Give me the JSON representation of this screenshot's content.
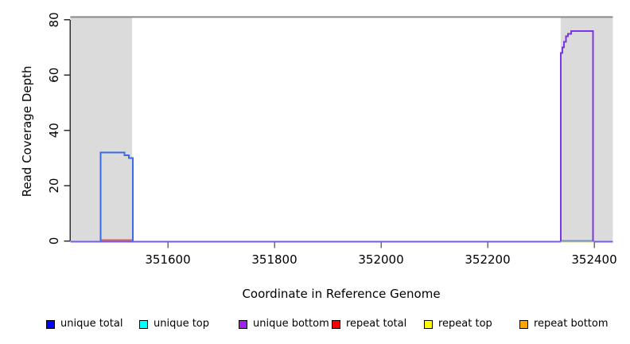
{
  "chart_data": {
    "type": "line",
    "title": "",
    "xlabel": "Coordinate in Reference Genome",
    "ylabel": "Read Coverage Depth",
    "xlim": [
      351417,
      352435
    ],
    "ylim": [
      0,
      81.5
    ],
    "x_ticks": [
      351600,
      351800,
      352000,
      352200,
      352400
    ],
    "y_ticks": [
      0,
      20,
      40,
      60,
      80
    ],
    "grid": false,
    "band_color": "#dbdbdb",
    "top_line_y": 81,
    "top_line_color": "#8a8a8a",
    "axis_color": "#2f2f2f",
    "x_tick_color": "#6e6e6e",
    "shaded_regions": [
      {
        "x0": 351417,
        "x1": 351533
      },
      {
        "x0": 352337,
        "x1": 352435
      }
    ],
    "series": [
      {
        "name": "zero-baseline",
        "color": "#6f5fe8",
        "width": 2,
        "dy": 1,
        "points": [
          [
            351417,
            0
          ],
          [
            352435,
            0
          ]
        ]
      },
      {
        "name": "repeat total zero",
        "color": "#de5f5f",
        "width": 1.6,
        "dy": -1,
        "points": [
          [
            351474,
            0
          ],
          [
            351535,
            0
          ]
        ]
      },
      {
        "name": "repeat top zero",
        "color": "#ededc2",
        "width": 1.6,
        "dy": 1.8,
        "points": [
          [
            352337,
            0
          ],
          [
            352399,
            0
          ]
        ]
      },
      {
        "name": "unique top zero",
        "color": "#8fc98f",
        "width": 1.6,
        "dy": -0.8,
        "points": [
          [
            352337,
            0
          ],
          [
            352399,
            0
          ]
        ]
      },
      {
        "name": "unique total peak",
        "color": "#3a6be6",
        "width": 2,
        "dy": 0,
        "points": [
          [
            351474,
            0
          ],
          [
            351474,
            32
          ],
          [
            351519,
            32
          ],
          [
            351519,
            31
          ],
          [
            351527,
            31
          ],
          [
            351527,
            30
          ],
          [
            351534,
            30
          ],
          [
            351534,
            0
          ]
        ]
      },
      {
        "name": "unique bottom peak",
        "color": "#7a36e5",
        "width": 2,
        "dy": 0,
        "points": [
          [
            352337,
            0
          ],
          [
            352337,
            68
          ],
          [
            352340,
            68
          ],
          [
            352340,
            70
          ],
          [
            352343,
            70
          ],
          [
            352343,
            72
          ],
          [
            352347,
            72
          ],
          [
            352347,
            74
          ],
          [
            352351,
            74
          ],
          [
            352351,
            75
          ],
          [
            352357,
            75
          ],
          [
            352357,
            76
          ],
          [
            352398,
            76
          ],
          [
            352398,
            0
          ]
        ]
      }
    ],
    "legend": [
      {
        "label": "unique total",
        "color": "#0000ff"
      },
      {
        "label": "unique top",
        "color": "#00ffff"
      },
      {
        "label": "unique bottom",
        "color": "#a020f0"
      },
      {
        "label": "repeat total",
        "color": "#ff0000"
      },
      {
        "label": "repeat top",
        "color": "#ffff00"
      },
      {
        "label": "repeat bottom",
        "color": "#ffa500"
      }
    ],
    "legend_position": "bottom"
  }
}
